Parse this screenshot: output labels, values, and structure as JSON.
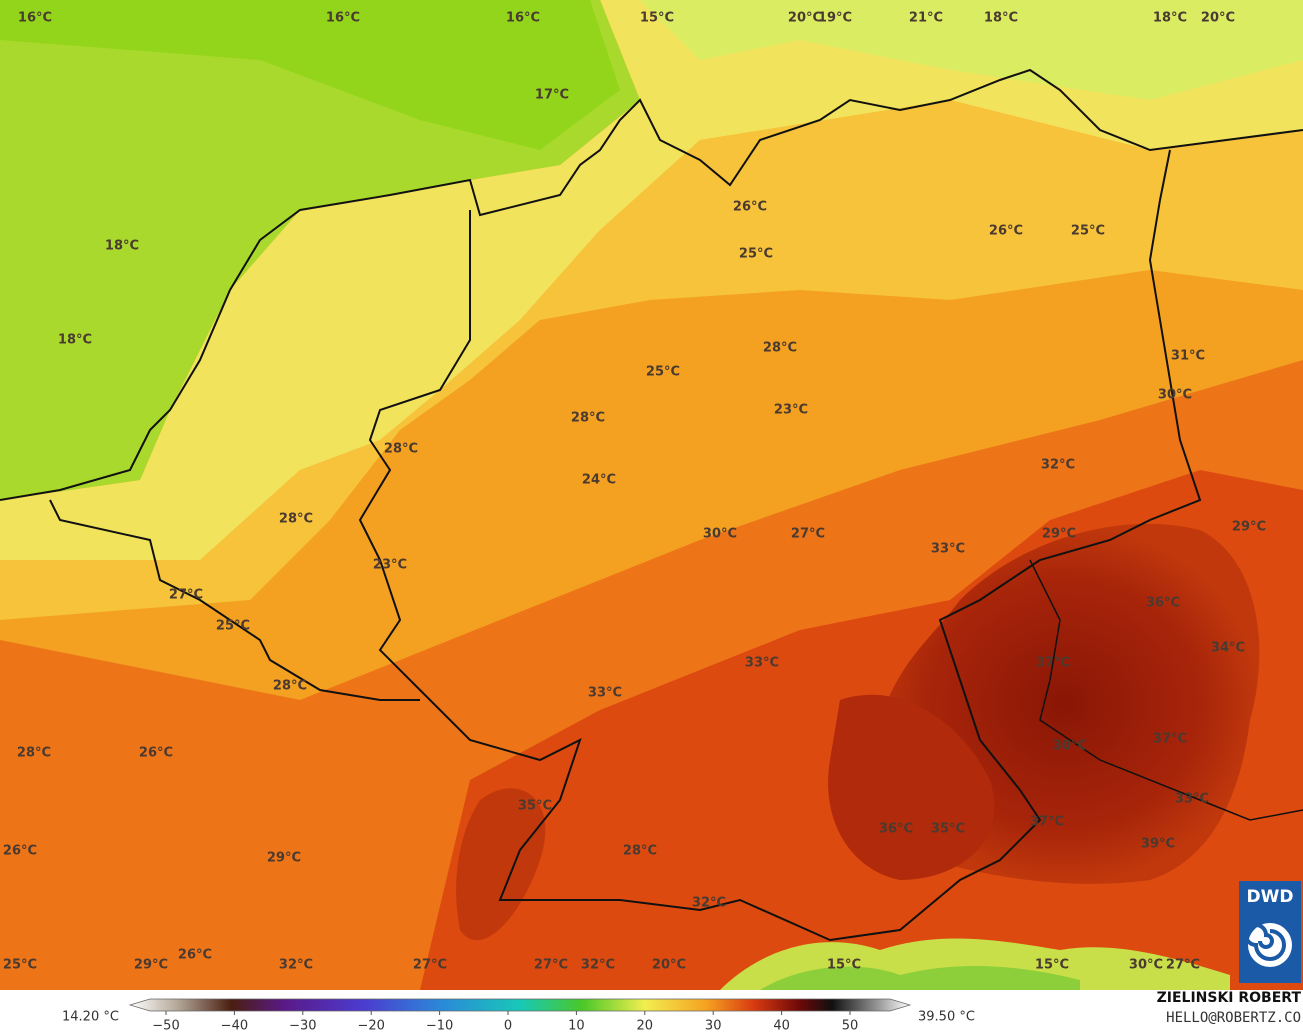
{
  "labels": [
    "16°C",
    "16°C",
    "16°C",
    "15°C",
    "20°C",
    "19°C",
    "21°C",
    "18°C",
    "18°C",
    "20°C",
    "17°C",
    "18°C",
    "18°C",
    "26°C",
    "25°C",
    "26°C",
    "25°C",
    "28°C",
    "25°C",
    "23°C",
    "31°C",
    "30°C",
    "28°C",
    "28°C",
    "32°C",
    "24°C",
    "28°C",
    "30°C",
    "27°C",
    "33°C",
    "29°C",
    "29°C",
    "23°C",
    "27°C",
    "25°C",
    "36°C",
    "37°C",
    "34°C",
    "33°C",
    "33°C",
    "28°C",
    "28°C",
    "26°C",
    "30°C",
    "37°C",
    "35°C",
    "33°C",
    "36°C",
    "35°C",
    "37°C",
    "26°C",
    "29°C",
    "28°C",
    "39°C",
    "32°C",
    "26°C",
    "25°C",
    "29°C",
    "32°C",
    "27°C",
    "27°C",
    "32°C",
    "20°C",
    "15°C",
    "15°C",
    "30°C",
    "27°C"
  ],
  "colorbar": {
    "min_label": "14.20 °C",
    "max_label": "39.50 °C",
    "ticks": [
      {
        "value": -50,
        "label": "−50"
      },
      {
        "value": -40,
        "label": "−40"
      },
      {
        "value": -30,
        "label": "−30"
      },
      {
        "value": -20,
        "label": "−20"
      },
      {
        "value": -10,
        "label": "−10"
      },
      0,
      10,
      20,
      30,
      40,
      50
    ]
  },
  "logo": "DWD",
  "credit": {
    "name": "ZIELINSKI ROBERT",
    "contact": "HELLO@ROBERTZ.CO"
  }
}
